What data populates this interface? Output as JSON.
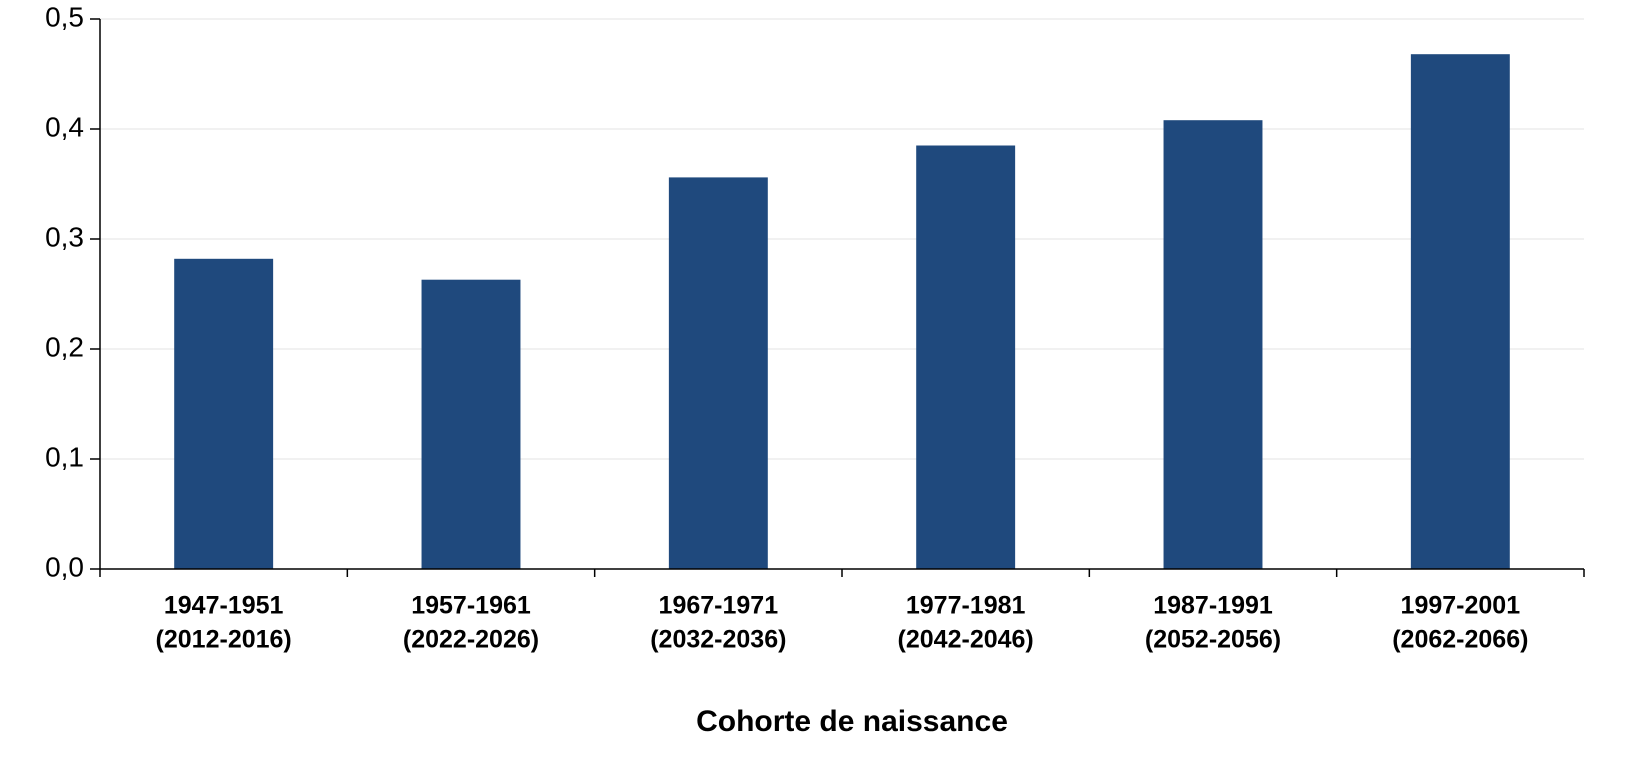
{
  "chart_data": {
    "type": "bar",
    "x_label": "Cohorte de naissance",
    "categories": [
      [
        "1947-1951",
        "(2012-2016)"
      ],
      [
        "1957-1961",
        "(2022-2026)"
      ],
      [
        "1967-1971",
        "(2032-2036)"
      ],
      [
        "1977-1981",
        "(2042-2046)"
      ],
      [
        "1987-1991",
        "(2052-2056)"
      ],
      [
        "1997-2001",
        "(2062-2066)"
      ]
    ],
    "values": [
      0.282,
      0.263,
      0.356,
      0.385,
      0.408,
      0.468
    ],
    "color": "#1f497d",
    "ylim": [
      0,
      0.5
    ],
    "yticks": [
      {
        "value": 0,
        "label": "0,0"
      },
      {
        "value": 0.1,
        "label": "0,1"
      },
      {
        "value": 0.2,
        "label": "0,2"
      },
      {
        "value": 0.3,
        "label": "0,3"
      },
      {
        "value": 0.4,
        "label": "0,4"
      },
      {
        "value": 0.5,
        "label": "0,5"
      }
    ],
    "grid": true
  }
}
